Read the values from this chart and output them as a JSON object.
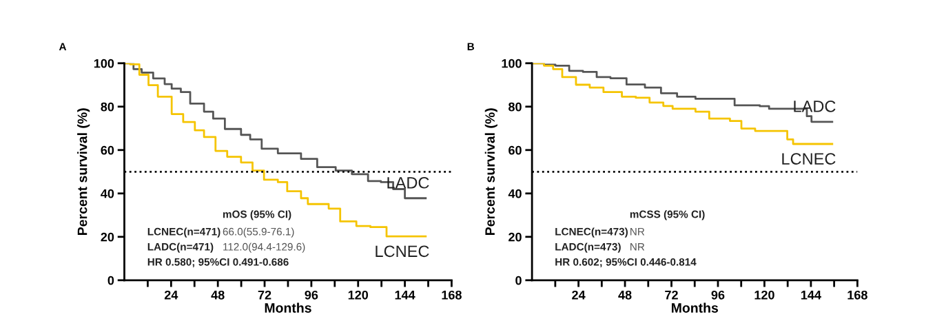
{
  "chart_data": [
    {
      "type": "step",
      "title": "A",
      "xlabel": "Months",
      "ylabel": "Percent survival (%)",
      "xlim": [
        0,
        168
      ],
      "ylim": [
        0,
        100
      ],
      "xticks": [
        {
          "value": 12,
          "label": null
        },
        24,
        {
          "value": 36,
          "label": null
        },
        48,
        {
          "value": 60,
          "label": null
        },
        72,
        {
          "value": 84,
          "label": null
        },
        96,
        {
          "value": 108,
          "label": null
        },
        120,
        {
          "value": 132,
          "label": null
        },
        144,
        {
          "value": 156,
          "label": null
        },
        168
      ],
      "yticks": [
        0,
        20,
        40,
        60,
        80,
        100
      ],
      "grid": false,
      "legend": false,
      "line_style": "solid",
      "ref_lines": [
        {
          "axis": "y",
          "value": 50,
          "color": "#000000",
          "line_style": "dotted"
        }
      ],
      "annotations": [
        "mOS (95% CI)",
        "LCNEC(n=471)",
        "66.0(55.9-76.1)",
        "LADC(n=471)",
        "112.0(94.4-129.6)",
        "HR 0.580; 95%CI 0.491-0.686"
      ],
      "series": [
        {
          "name": "LADC",
          "color": "#555555",
          "x": [
            0,
            4.7,
            8.9,
            14.8,
            20.7,
            24.3,
            29,
            33.8,
            40.9,
            45.6,
            51.6,
            59.9,
            64.6,
            70.5,
            78.8,
            90.7,
            99,
            108.5,
            116.8,
            125.1,
            131.7,
            138,
            144,
            154.7
          ],
          "values": [
            100,
            97.3,
            95.7,
            93,
            90.4,
            88.3,
            86.7,
            81.4,
            77.7,
            74.5,
            69.7,
            67,
            64.9,
            60.6,
            58.5,
            55.9,
            52.1,
            50.5,
            48.9,
            45.7,
            45.2,
            42,
            37.8,
            37.8
          ]
        },
        {
          "name": "LCNEC",
          "color": "#f5c400",
          "x": [
            0,
            3,
            7.7,
            12.4,
            17.2,
            24.3,
            30.2,
            36.2,
            40.9,
            46.8,
            52.8,
            59.9,
            65.8,
            71.7,
            78.8,
            83.6,
            90.7,
            94.2,
            104.9,
            110.8,
            119.1,
            126.3,
            134.6,
            154.7
          ],
          "values": [
            100,
            99.5,
            94.7,
            89.9,
            84.6,
            76.6,
            72.9,
            69.1,
            66,
            59.6,
            56.9,
            54.3,
            50.5,
            46.3,
            45.2,
            41,
            37.8,
            35.1,
            33,
            27.1,
            25,
            24.5,
            20.2,
            20.2
          ]
        }
      ]
    },
    {
      "type": "step",
      "title": "B",
      "xlabel": "Months",
      "ylabel": "Percent survival (%)",
      "xlim": [
        0,
        168
      ],
      "ylim": [
        0,
        100
      ],
      "xticks": [
        {
          "value": 12,
          "label": null
        },
        24,
        {
          "value": 36,
          "label": null
        },
        48,
        {
          "value": 60,
          "label": null
        },
        72,
        {
          "value": 84,
          "label": null
        },
        96,
        {
          "value": 108,
          "label": null
        },
        120,
        {
          "value": 132,
          "label": null
        },
        144,
        {
          "value": 156,
          "label": null
        },
        168
      ],
      "yticks": [
        0,
        20,
        40,
        60,
        80,
        100
      ],
      "grid": false,
      "legend": false,
      "line_style": "solid",
      "ref_lines": [
        {
          "axis": "y",
          "value": 50,
          "color": "#000000",
          "line_style": "dotted"
        }
      ],
      "annotations": [
        "mCSS (95% CI)",
        "LCNEC(n=473)",
        "NR",
        "LADC(n=473)",
        "NR",
        "HR 0.602; 95%CI 0.446-0.814"
      ],
      "series": [
        {
          "name": "LADC",
          "color": "#555555",
          "x": [
            0,
            6.2,
            12.1,
            19.2,
            26.3,
            33.4,
            40.5,
            48.8,
            58.3,
            66.6,
            74.9,
            84.4,
            96.3,
            104.6,
            117.6,
            122.4,
            139,
            141.9,
            144.3,
            155
          ],
          "values": [
            100,
            99.3,
            98.9,
            96.5,
            96,
            93.6,
            93.1,
            90.2,
            88.8,
            86.2,
            84.6,
            83.6,
            83.6,
            80.6,
            80.2,
            79,
            79,
            75.6,
            73,
            73
          ]
        },
        {
          "name": "LCNEC",
          "color": "#f5c400",
          "x": [
            0,
            6.2,
            10.9,
            15.6,
            22.7,
            29.8,
            36.9,
            46.4,
            53.6,
            60.7,
            67.8,
            72.6,
            84.4,
            91.5,
            102.2,
            108.1,
            115.2,
            127.1,
            131.8,
            134.8,
            155
          ],
          "values": [
            100,
            98.9,
            97.3,
            93.6,
            90.1,
            88.8,
            86.7,
            84.6,
            84.1,
            81.9,
            80.3,
            79,
            77.7,
            74.5,
            73.4,
            69.9,
            68.8,
            68.8,
            64.9,
            62.8,
            62.8
          ]
        }
      ]
    }
  ]
}
